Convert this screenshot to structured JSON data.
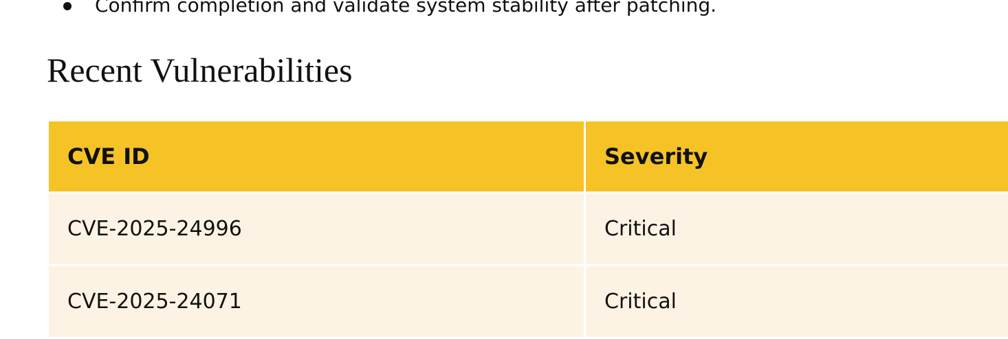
{
  "bullets": [
    "Confirm completion and validate system stability after patching."
  ],
  "section": {
    "title": "Recent Vulnerabilities"
  },
  "table": {
    "headers": [
      "CVE ID",
      "Severity"
    ],
    "rows": [
      [
        "CVE-2025-24996",
        "Critical"
      ],
      [
        "CVE-2025-24071",
        "Critical"
      ]
    ]
  },
  "colors": {
    "header_bg": "#f6c327",
    "row_bg": "#fdf3e4",
    "text": "#111111"
  }
}
